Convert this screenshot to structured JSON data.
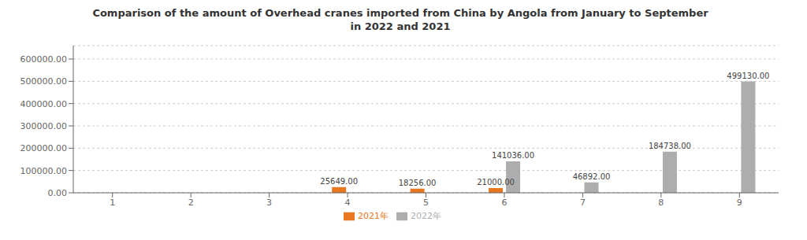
{
  "chart_data": {
    "type": "bar",
    "title": "Comparison of the amount of Overhead cranes imported from China by Angola from January to September\nin 2022 and 2021",
    "categories": [
      "1",
      "2",
      "3",
      "4",
      "5",
      "6",
      "7",
      "8",
      "9"
    ],
    "series": [
      {
        "name": "2021年",
        "color": "#E87722",
        "values": [
          0,
          0,
          0,
          25649.0,
          18256.0,
          21000.0,
          0,
          0,
          0
        ],
        "value_labels": [
          null,
          null,
          null,
          "25649.00",
          "18256.00",
          "21000.00",
          null,
          null,
          null
        ]
      },
      {
        "name": "2022年",
        "color": "#ADADAD",
        "values": [
          0,
          0,
          0,
          0,
          0,
          141036.0,
          46892.0,
          184738.0,
          499130.0
        ],
        "value_labels": [
          null,
          null,
          null,
          null,
          null,
          "141036.00",
          "46892.00",
          "184738.00",
          "499130.00"
        ]
      }
    ],
    "ylim": [
      0,
      660000
    ],
    "yticks": [
      {
        "value": 0,
        "label": "0.00"
      },
      {
        "value": 100000,
        "label": "100000.00"
      },
      {
        "value": 200000,
        "label": "200000.00"
      },
      {
        "value": 300000,
        "label": "300000.00"
      },
      {
        "value": 400000,
        "label": "400000.00"
      },
      {
        "value": 500000,
        "label": "500000.00"
      },
      {
        "value": 600000,
        "label": "600000.00"
      }
    ],
    "grid": true,
    "legend": "bottom",
    "data_labels": true
  }
}
